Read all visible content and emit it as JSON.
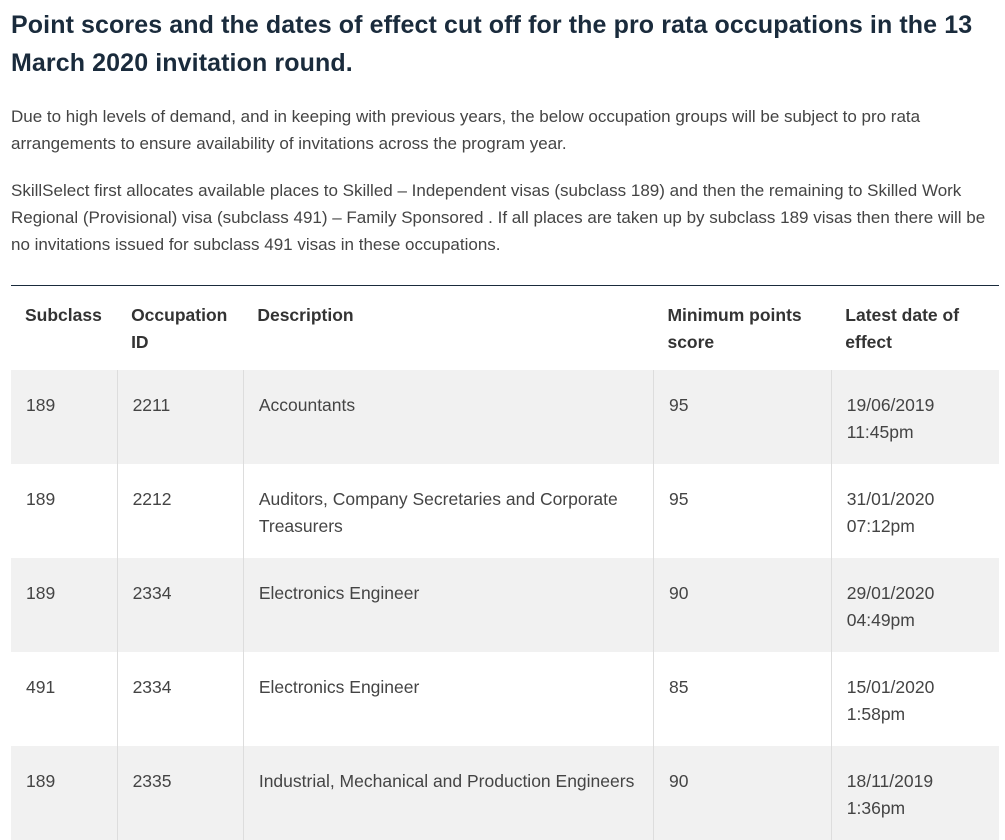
{
  "page": {
    "title": "Point scores and the dates of effect cut off for the pro rata occupations in the 13 March 2020 invitation round.",
    "paragraphs": [
      "Due to high levels of demand, and in keeping with previous years, the below occupation groups will be subject to pro rata arrangements to ensure availability of invitations across the program year.",
      "SkillSelect first allocates available places to Skilled – Independent visas (subclass 189) and then the remaining to Skilled Work Regional (Provisional) visa (subclass 491) – Family Sponsored . If all places are taken up by subclass 189 visas then there will be no invitations issued for subclass 491 visas in these occupations."
    ]
  },
  "table": {
    "headers": [
      "Subclass",
      "Occupation ID",
      "Description",
      "Minimum points score",
      "Latest date of effect"
    ],
    "rows": [
      {
        "subclass": "189",
        "occupation_id": "2211",
        "description": "Accountants",
        "min_points": "95",
        "date": "19/06/2019 11:45pm"
      },
      {
        "subclass": "189",
        "occupation_id": "2212",
        "description": "Auditors, Company Secretaries and Corporate Treasurers",
        "min_points": "95",
        "date": "31/01/2020 07:12pm"
      },
      {
        "subclass": "189",
        "occupation_id": "2334",
        "description": "Electronics Engineer",
        "min_points": "90",
        "date": "29/01/2020 04:49pm"
      },
      {
        "subclass": "491",
        "occupation_id": "2334",
        "description": "Electronics Engineer",
        "min_points": "85",
        "date": "15/01/2020 1:58pm"
      },
      {
        "subclass": "189",
        "occupation_id": "2335",
        "description": "Industrial, Mechanical and Production Engineers",
        "min_points": "90",
        "date": "18/11/2019 1:36pm"
      }
    ]
  },
  "colors": {
    "heading": "#1a2b3c",
    "body_text": "#444444",
    "row_stripe": "#f1f1f1",
    "column_divider": "#dddddd"
  }
}
